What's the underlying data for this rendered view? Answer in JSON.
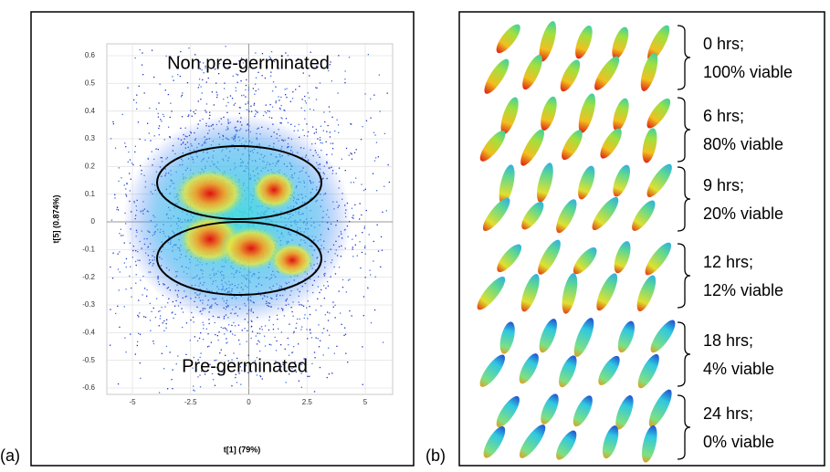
{
  "panel_a": {
    "label": "(a)",
    "top_annotation": "Non pre-germinated",
    "bottom_annotation": "Pre-germinated",
    "x_axis_label": "t[1] (79%)",
    "y_axis_label": "t[5] (0.874%)",
    "xticks": [
      -5,
      -2.5,
      0,
      2.5,
      5
    ],
    "yticks": [
      0.6,
      0.5,
      0.4,
      0.3,
      0.2,
      0.1,
      0,
      -0.1,
      -0.2,
      -0.3,
      -0.4,
      -0.5,
      -0.6
    ]
  },
  "panel_b": {
    "label": "(b)",
    "groups": [
      {
        "time": "0 hrs;",
        "viability": "100% viable"
      },
      {
        "time": "6 hrs;",
        "viability": "80% viable"
      },
      {
        "time": "9 hrs;",
        "viability": "20% viable"
      },
      {
        "time": "12 hrs;",
        "viability": "12% viable"
      },
      {
        "time": "18 hrs;",
        "viability": "4% viable"
      },
      {
        "time": "24 hrs;",
        "viability": "0% viable"
      }
    ]
  }
}
